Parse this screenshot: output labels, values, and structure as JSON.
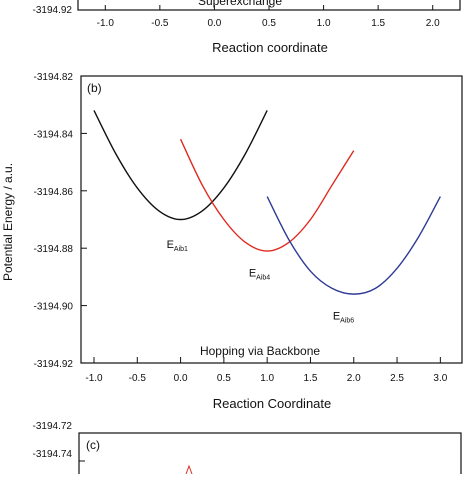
{
  "chart_data": [
    {
      "panel": "",
      "type": "line",
      "title": "",
      "annotation": "Superexchange",
      "xlabel": "Reaction coordinate",
      "ylabel": "",
      "x_ticks": [
        "-1.0",
        "-0.5",
        "0.0",
        "0.5",
        "1.0",
        "1.5",
        "2.0"
      ],
      "y_ticks": [
        "-3194.92"
      ],
      "xlim": [
        -1.25,
        2.25
      ],
      "series": []
    },
    {
      "panel": "(b)",
      "type": "line",
      "title": "",
      "annotation": "Hopping via Backbone",
      "xlabel": "Reaction Coordinate",
      "ylabel": "Potential Energy / a.u.",
      "xlim": [
        -1.15,
        3.25
      ],
      "ylim": [
        -3194.92,
        -3194.82
      ],
      "x_ticks": [
        "-1.0",
        "-0.5",
        "0.0",
        "0.5",
        "1.0",
        "1.5",
        "2.0",
        "2.5",
        "3.0"
      ],
      "y_ticks": [
        "-3194.82",
        "-3194.84",
        "-3194.86",
        "-3194.88",
        "-3194.90",
        "-3194.92"
      ],
      "grid": false,
      "series": [
        {
          "color": "#111111",
          "label_main": "E",
          "label_sub": "Aib1",
          "label_at": [
            0.0,
            -3194.875
          ],
          "x": [
            -1.0,
            -0.75,
            -0.5,
            -0.25,
            0.0,
            0.25,
            0.5,
            0.75,
            1.0
          ],
          "y": [
            -3194.832,
            -3194.847,
            -3194.859,
            -3194.867,
            -3194.87,
            -3194.867,
            -3194.859,
            -3194.847,
            -3194.832
          ]
        },
        {
          "color": "#e02a20",
          "label_main": "E",
          "label_sub": "Aib4",
          "label_at": [
            0.95,
            -3194.885
          ],
          "x": [
            0.0,
            0.25,
            0.5,
            0.75,
            1.0,
            1.25,
            1.5,
            1.75,
            2.0
          ],
          "y": [
            -3194.842,
            -3194.858,
            -3194.87,
            -3194.878,
            -3194.881,
            -3194.878,
            -3194.87,
            -3194.858,
            -3194.846
          ]
        },
        {
          "color": "#2e3a96",
          "label_main": "E",
          "label_sub": "Aib6",
          "label_at": [
            1.92,
            -3194.9
          ],
          "x": [
            1.0,
            1.25,
            1.5,
            1.75,
            2.0,
            2.25,
            2.5,
            2.75,
            3.0
          ],
          "y": [
            -3194.862,
            -3194.877,
            -3194.888,
            -3194.894,
            -3194.896,
            -3194.894,
            -3194.887,
            -3194.876,
            -3194.862
          ]
        }
      ]
    },
    {
      "panel": "(c)",
      "type": "line",
      "title": "",
      "annotation": "",
      "xlabel": "",
      "ylabel": "",
      "y_ticks": [
        "-3194.72",
        "-3194.74"
      ],
      "series": []
    }
  ]
}
